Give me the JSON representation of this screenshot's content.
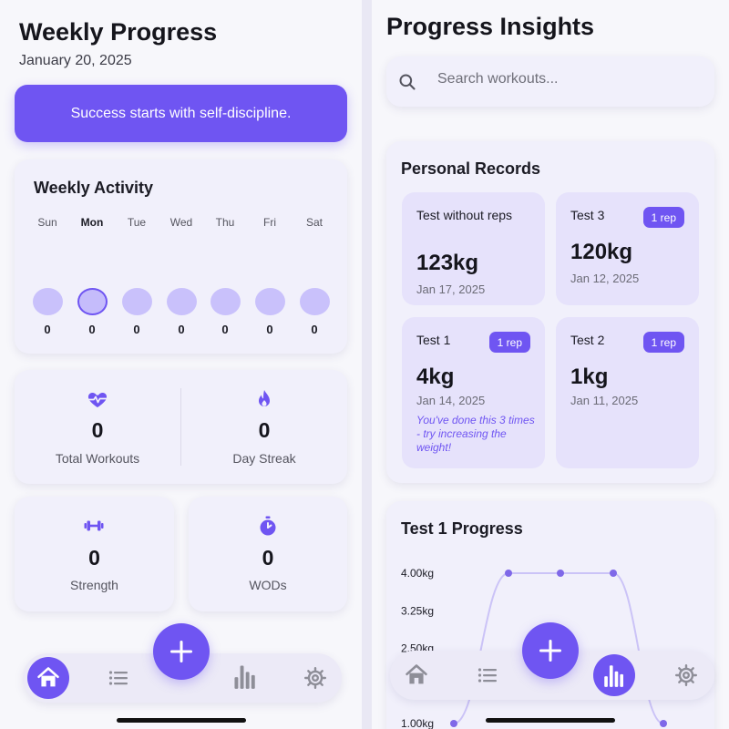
{
  "left": {
    "title": "Weekly Progress",
    "date": "January 20, 2025",
    "quote": "Success starts with self-discipline.",
    "activity": {
      "title": "Weekly Activity",
      "days": [
        {
          "label": "Sun",
          "count": "0",
          "active": false
        },
        {
          "label": "Mon",
          "count": "0",
          "active": true
        },
        {
          "label": "Tue",
          "count": "0",
          "active": false
        },
        {
          "label": "Wed",
          "count": "0",
          "active": false
        },
        {
          "label": "Thu",
          "count": "0",
          "active": false
        },
        {
          "label": "Fri",
          "count": "0",
          "active": false
        },
        {
          "label": "Sat",
          "count": "0",
          "active": false
        }
      ]
    },
    "stats": {
      "total_workouts": {
        "value": "0",
        "label": "Total Workouts",
        "icon": "heart-pulse-icon"
      },
      "day_streak": {
        "value": "0",
        "label": "Day Streak",
        "icon": "flame-icon"
      },
      "strength": {
        "value": "0",
        "label": "Strength",
        "icon": "dumbbell-icon"
      },
      "wods": {
        "value": "0",
        "label": "WODs",
        "icon": "stopwatch-icon"
      }
    },
    "nav": {
      "active": "home"
    }
  },
  "right": {
    "title": "Progress Insights",
    "search": {
      "placeholder": "Search workouts...",
      "value": ""
    },
    "records": {
      "title": "Personal Records",
      "items": [
        {
          "name": "Test without reps",
          "badge": "",
          "value": "123kg",
          "date": "Jan 17, 2025",
          "note": ""
        },
        {
          "name": "Test 3",
          "badge": "1 rep",
          "value": "120kg",
          "date": "Jan 12, 2025",
          "note": ""
        },
        {
          "name": "Test 1",
          "badge": "1 rep",
          "value": "4kg",
          "date": "Jan 14, 2025",
          "note": "You've done this 3 times - try increasing the weight!"
        },
        {
          "name": "Test 2",
          "badge": "1 rep",
          "value": "1kg",
          "date": "Jan 11, 2025",
          "note": ""
        }
      ]
    },
    "progress_title": "Test 1 Progress",
    "nav": {
      "active": "stats"
    }
  },
  "chart_data": {
    "type": "line",
    "title": "Test 1 Progress",
    "xlabel": "",
    "ylabel": "",
    "y_ticks": [
      "4.00kg",
      "3.25kg",
      "2.50kg",
      "1.00kg"
    ],
    "ylim": [
      1.0,
      4.0
    ],
    "series": [
      {
        "values": [
          1.0,
          4.0,
          4.0,
          4.0,
          1.0
        ]
      }
    ],
    "grid": false,
    "legend": "none"
  },
  "colors": {
    "accent": "#6f55f2",
    "accent_light": "#c9c1fb",
    "card": "#f1f0fb",
    "background": "#f7f7fb"
  }
}
